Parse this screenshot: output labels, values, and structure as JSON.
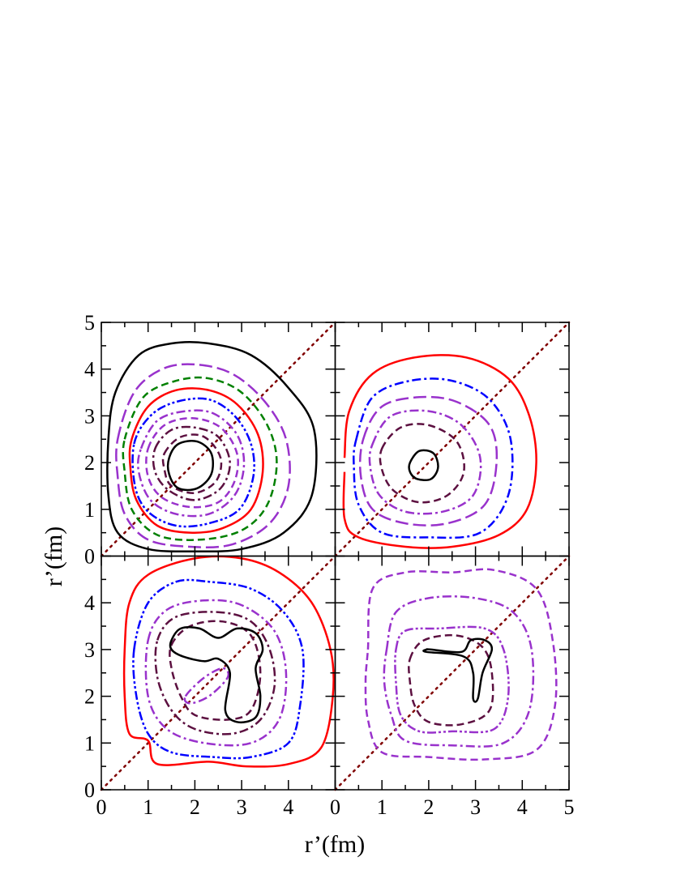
{
  "axis_labels": {
    "x": "r’(fm)",
    "y": "r’(fm)"
  },
  "chart_data": [
    {
      "type": "contour",
      "xlim": [
        0,
        5
      ],
      "ylim": [
        0,
        5
      ],
      "xticks": [
        0,
        1,
        2,
        3,
        4,
        5
      ],
      "yticks": [
        0,
        1,
        2,
        3,
        4,
        5
      ],
      "diagonal": true,
      "contours": [
        {
          "color": "#000000",
          "dash": "solid",
          "x": [
            0.15,
            0.3,
            0.8,
            1.5,
            2.3,
            3.2,
            4.0,
            4.55,
            4.5,
            3.9,
            3.0,
            2.0,
            1.0,
            0.35,
            0.15
          ],
          "y": [
            2.5,
            3.5,
            4.3,
            4.55,
            4.55,
            4.3,
            3.6,
            2.7,
            1.3,
            0.5,
            0.15,
            0.1,
            0.15,
            0.5,
            1.3
          ]
        },
        {
          "color": "#9932cc",
          "dash": "long-dash",
          "x": [
            0.35,
            0.7,
            1.3,
            2.0,
            2.8,
            3.5,
            3.95,
            4.0,
            3.6,
            2.8,
            1.9,
            1.0,
            0.5,
            0.35
          ],
          "y": [
            2.5,
            3.5,
            4.0,
            4.1,
            3.9,
            3.3,
            2.5,
            1.5,
            0.7,
            0.25,
            0.2,
            0.35,
            0.9,
            1.7
          ]
        },
        {
          "color": "#008000",
          "dash": "dash",
          "x": [
            0.5,
            0.9,
            1.6,
            2.3,
            3.0,
            3.55,
            3.75,
            3.55,
            3.0,
            2.1,
            1.2,
            0.65,
            0.5
          ],
          "y": [
            2.5,
            3.4,
            3.75,
            3.8,
            3.5,
            2.8,
            2.0,
            1.1,
            0.55,
            0.35,
            0.45,
            1.0,
            1.8
          ]
        },
        {
          "color": "#ff0000",
          "dash": "solid",
          "x": [
            0.65,
            1.0,
            1.6,
            2.3,
            2.9,
            3.35,
            3.45,
            3.2,
            2.6,
            1.9,
            1.2,
            0.75,
            0.62
          ],
          "y": [
            2.5,
            3.2,
            3.55,
            3.55,
            3.25,
            2.6,
            1.8,
            1.0,
            0.6,
            0.5,
            0.65,
            1.2,
            1.9
          ]
        },
        {
          "color": "#0000ff",
          "dash": "dash-dot-dot",
          "x": [
            0.7,
            1.05,
            1.6,
            2.3,
            2.85,
            3.2,
            3.25,
            2.95,
            2.3,
            1.6,
            1.0,
            0.72
          ],
          "y": [
            2.4,
            3.0,
            3.3,
            3.35,
            3.0,
            2.4,
            1.7,
            1.0,
            0.7,
            0.65,
            0.95,
            1.5
          ]
        },
        {
          "color": "#9932cc",
          "dash": "dash-dot",
          "x": [
            0.85,
            1.2,
            1.8,
            2.4,
            2.9,
            3.05,
            2.85,
            2.3,
            1.6,
            1.05,
            0.8
          ],
          "y": [
            2.3,
            2.9,
            3.1,
            3.05,
            2.6,
            1.95,
            1.3,
            0.9,
            0.9,
            1.2,
            1.8
          ]
        },
        {
          "color": "#9932cc",
          "dash": "dash",
          "x": [
            1.0,
            1.35,
            1.95,
            2.55,
            2.9,
            2.85,
            2.5,
            1.9,
            1.3,
            1.0
          ],
          "y": [
            2.3,
            2.8,
            2.95,
            2.75,
            2.2,
            1.6,
            1.15,
            1.05,
            1.25,
            1.7
          ]
        },
        {
          "color": "#5c1040",
          "dash": "dash-dot",
          "x": [
            1.15,
            1.5,
            2.0,
            2.5,
            2.75,
            2.55,
            2.0,
            1.45,
            1.15
          ],
          "y": [
            2.3,
            2.7,
            2.75,
            2.55,
            2.0,
            1.45,
            1.2,
            1.4,
            1.8
          ]
        },
        {
          "color": "#5c1040",
          "dash": "dash",
          "x": [
            1.35,
            1.7,
            2.2,
            2.55,
            2.45,
            2.0,
            1.5,
            1.35
          ],
          "y": [
            2.2,
            2.55,
            2.55,
            2.1,
            1.6,
            1.35,
            1.5,
            1.85
          ]
        },
        {
          "color": "#000000",
          "dash": "solid",
          "x": [
            1.45,
            1.65,
            2.05,
            2.35,
            2.35,
            2.05,
            1.65,
            1.45
          ],
          "y": [
            2.1,
            2.4,
            2.45,
            2.2,
            1.75,
            1.45,
            1.45,
            1.75
          ]
        }
      ]
    },
    {
      "type": "contour",
      "xlim": [
        0,
        5
      ],
      "ylim": [
        0,
        5
      ],
      "xticks": [
        0,
        1,
        2,
        3,
        4,
        5
      ],
      "yticks": [
        0,
        1,
        2,
        3,
        4,
        5
      ],
      "diagonal": true,
      "contours": [
        {
          "color": "#ff0000",
          "dash": "solid",
          "closed": false,
          "x": [
            0.2,
            0.2,
            0.5,
            1.5,
            2.5,
            3.5,
            4.1,
            4.3,
            4.15,
            3.7,
            2.8,
            1.7,
            0.8,
            0.3,
            0.2
          ],
          "y": [
            1.8,
            0.8,
            0.4,
            0.2,
            0.2,
            0.45,
            1.0,
            2.0,
            3.0,
            3.8,
            4.25,
            4.25,
            3.9,
            3.1,
            2.1
          ]
        },
        {
          "color": "#0000ff",
          "dash": "dash-dot",
          "x": [
            0.45,
            0.8,
            1.6,
            2.5,
            3.3,
            3.75,
            3.7,
            3.1,
            2.0,
            1.0,
            0.5,
            0.4
          ],
          "y": [
            2.5,
            3.4,
            3.75,
            3.75,
            3.35,
            2.5,
            1.3,
            0.5,
            0.4,
            0.5,
            1.1,
            1.9
          ]
        },
        {
          "color": "#9932cc",
          "dash": "long-dash",
          "x": [
            0.6,
            1.0,
            1.8,
            2.6,
            3.3,
            3.45,
            3.2,
            2.4,
            1.5,
            0.8,
            0.55
          ],
          "y": [
            2.5,
            3.2,
            3.4,
            3.3,
            2.8,
            2.0,
            1.1,
            0.7,
            0.7,
            1.0,
            1.7
          ]
        },
        {
          "color": "#9932cc",
          "dash": "dash-dot",
          "x": [
            0.8,
            1.2,
            2.0,
            2.7,
            3.1,
            2.95,
            2.3,
            1.5,
            0.95,
            0.75
          ],
          "y": [
            2.4,
            3.0,
            3.1,
            2.8,
            2.1,
            1.3,
            0.95,
            0.95,
            1.3,
            1.9
          ]
        },
        {
          "color": "#5c1040",
          "dash": "dash",
          "x": [
            1.0,
            1.4,
            2.0,
            2.6,
            2.75,
            2.4,
            1.8,
            1.25,
            1.0
          ],
          "y": [
            2.3,
            2.75,
            2.8,
            2.45,
            1.8,
            1.3,
            1.15,
            1.4,
            1.85
          ]
        },
        {
          "color": "#000000",
          "dash": "solid",
          "x": [
            1.6,
            1.8,
            2.1,
            2.2,
            2.05,
            1.75,
            1.6
          ],
          "y": [
            2.0,
            2.25,
            2.2,
            1.9,
            1.65,
            1.65,
            1.8
          ]
        }
      ]
    },
    {
      "type": "contour",
      "xlim": [
        0,
        5
      ],
      "ylim": [
        0,
        5
      ],
      "xticks": [
        0,
        1,
        2,
        3,
        4,
        5
      ],
      "yticks": [
        0,
        1,
        2,
        3,
        4,
        5
      ],
      "diagonal": true,
      "contours": [
        {
          "color": "#ff0000",
          "dash": "solid",
          "x": [
            0.5,
            0.6,
            1.0,
            2.0,
            3.0,
            3.8,
            4.5,
            4.9,
            4.95,
            4.7,
            4.0,
            3.1,
            2.3,
            1.2,
            1.0,
            0.6,
            0.5
          ],
          "y": [
            3.0,
            4.0,
            4.6,
            4.95,
            4.95,
            4.65,
            4.0,
            3.0,
            2.0,
            0.9,
            0.55,
            0.5,
            0.6,
            0.55,
            1.05,
            1.2,
            2.0
          ]
        },
        {
          "color": "#0000ff",
          "dash": "dash-dot-dot",
          "x": [
            0.7,
            1.0,
            1.6,
            2.3,
            3.2,
            3.9,
            4.3,
            4.25,
            4.0,
            3.2,
            2.4,
            1.5,
            1.0,
            0.75
          ],
          "y": [
            3.0,
            4.0,
            4.45,
            4.45,
            4.3,
            3.8,
            3.0,
            1.8,
            1.0,
            0.7,
            0.7,
            0.8,
            1.2,
            2.0
          ]
        },
        {
          "color": "#9932cc",
          "dash": "dash-dot",
          "x": [
            1.0,
            1.4,
            2.2,
            3.0,
            3.7,
            3.95,
            3.8,
            3.2,
            2.2,
            1.4,
            1.0
          ],
          "y": [
            3.2,
            3.85,
            4.05,
            3.95,
            3.4,
            2.5,
            1.5,
            1.0,
            1.0,
            1.3,
            2.0
          ]
        },
        {
          "color": "#5c1040",
          "dash": "dash-dot",
          "x": [
            1.2,
            1.6,
            2.5,
            3.2,
            3.6,
            3.7,
            3.4,
            2.8,
            2.0,
            1.5,
            1.2
          ],
          "y": [
            3.2,
            3.7,
            3.8,
            3.6,
            3.0,
            2.2,
            1.5,
            1.2,
            1.3,
            1.7,
            2.4
          ]
        },
        {
          "color": "#5c1040",
          "dash": "dash",
          "x": [
            1.5,
            1.9,
            2.6,
            3.2,
            3.4,
            3.2,
            2.7,
            2.0,
            1.7,
            1.5
          ],
          "y": [
            3.1,
            3.5,
            3.6,
            3.3,
            2.5,
            1.7,
            1.5,
            1.6,
            2.0,
            2.6
          ]
        },
        {
          "color": "#9932cc",
          "dash": "dash-dot",
          "x": [
            1.8,
            2.2,
            2.6,
            2.7,
            2.3,
            1.9
          ],
          "y": [
            2.0,
            2.4,
            2.6,
            2.4,
            2.0,
            1.85
          ]
        },
        {
          "color": "#000000",
          "dash": "solid",
          "x": [
            1.5,
            1.7,
            2.1,
            2.5,
            2.9,
            3.3,
            3.45,
            3.3,
            3.4,
            3.3,
            2.9,
            2.65,
            2.75,
            2.5,
            2.2,
            1.75,
            1.5
          ],
          "y": [
            3.2,
            3.45,
            3.45,
            3.25,
            3.45,
            3.35,
            3.0,
            2.6,
            2.0,
            1.55,
            1.45,
            1.7,
            2.5,
            2.8,
            2.75,
            2.85,
            3.0
          ]
        }
      ]
    },
    {
      "type": "contour",
      "xlim": [
        0,
        5
      ],
      "ylim": [
        0,
        5
      ],
      "xticks": [
        0,
        1,
        2,
        3,
        4,
        5
      ],
      "yticks": [
        0,
        1,
        2,
        3,
        4,
        5
      ],
      "diagonal": true,
      "contours": [
        {
          "color": "#9932cc",
          "dash": "dash",
          "x": [
            0.7,
            0.8,
            1.5,
            2.5,
            3.4,
            4.3,
            4.65,
            4.7,
            4.3,
            3.2,
            2.0,
            1.0,
            0.7,
            0.65
          ],
          "y": [
            3.0,
            4.3,
            4.65,
            4.65,
            4.7,
            4.3,
            3.2,
            1.8,
            0.85,
            0.65,
            0.7,
            0.8,
            1.5,
            2.3
          ]
        },
        {
          "color": "#9932cc",
          "dash": "dash-dot",
          "x": [
            1.1,
            1.3,
            2.0,
            3.0,
            3.8,
            4.2,
            4.15,
            3.6,
            2.5,
            1.5,
            1.2,
            1.05
          ],
          "y": [
            3.0,
            3.8,
            4.1,
            4.1,
            3.8,
            3.0,
            1.7,
            1.0,
            0.95,
            1.05,
            1.6,
            2.3
          ]
        },
        {
          "color": "#9932cc",
          "dash": "dash-dot-dot",
          "x": [
            1.3,
            1.5,
            2.2,
            3.2,
            3.6,
            3.7,
            3.4,
            2.5,
            1.8,
            1.4,
            1.3
          ],
          "y": [
            3.0,
            3.4,
            3.45,
            3.45,
            3.0,
            2.0,
            1.3,
            1.25,
            1.25,
            1.6,
            2.3
          ]
        },
        {
          "color": "#5c1040",
          "dash": "dash",
          "x": [
            1.6,
            1.9,
            2.6,
            3.15,
            3.35,
            3.3,
            2.7,
            2.0,
            1.7,
            1.6
          ],
          "y": [
            2.8,
            3.2,
            3.3,
            3.05,
            2.5,
            1.7,
            1.4,
            1.45,
            1.8,
            2.3
          ]
        },
        {
          "color": "#000000",
          "dash": "solid",
          "x": [
            1.95,
            2.05,
            2.7,
            2.9,
            3.2,
            3.35,
            3.15,
            3.05,
            2.95,
            2.95,
            2.75,
            1.95
          ],
          "y": [
            3.0,
            3.0,
            2.95,
            3.2,
            3.2,
            3.0,
            2.5,
            1.95,
            1.95,
            2.5,
            2.85,
            2.95
          ]
        }
      ]
    }
  ]
}
